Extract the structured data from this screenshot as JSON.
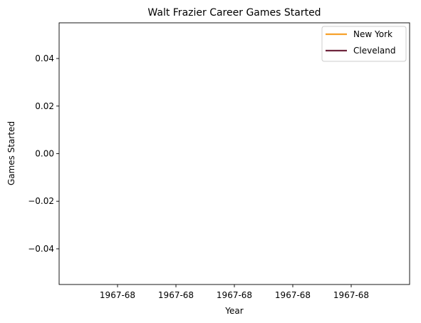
{
  "chart_data": {
    "type": "line",
    "title": "Walt Frazier Career Games Started",
    "xlabel": "Year",
    "ylabel": "Games Started",
    "x_tick_labels": [
      "1967-68",
      "1967-68",
      "1967-68",
      "1967-68",
      "1967-68"
    ],
    "y_ticks": [
      -0.04,
      -0.02,
      0.0,
      0.02,
      0.04
    ],
    "y_tick_labels": [
      "−0.04",
      "−0.02",
      "0.00",
      "0.02",
      "0.04"
    ],
    "ylim": [
      -0.055,
      0.055
    ],
    "grid": false,
    "legend_position": "top-right",
    "series": [
      {
        "name": "New York",
        "color": "#f7a12b",
        "values": []
      },
      {
        "name": "Cleveland",
        "color": "#6f263d",
        "values": []
      }
    ]
  }
}
